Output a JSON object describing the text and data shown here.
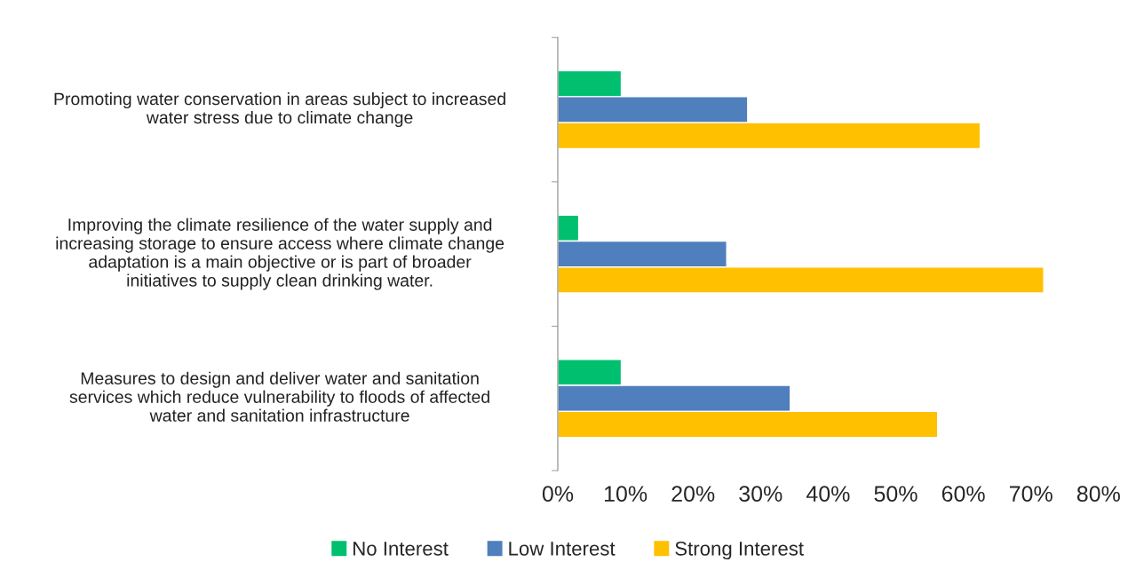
{
  "chart_data": {
    "type": "bar",
    "orientation": "horizontal",
    "categories": [
      "Promoting water conservation in areas subject to increased\nwater stress due to climate change",
      "Improving the climate resilience of the water supply and\nincreasing storage to ensure access where climate change\nadaptation is a main objective or is part of broader\ninitiatives to supply clean drinking water.",
      "Measures to design and deliver water and sanitation\nservices which reduce vulnerability to floods of affected\nwater and sanitation infrastructure"
    ],
    "series": [
      {
        "name": "No Interest",
        "color": "#00c06f",
        "values": [
          9.4,
          3.1,
          9.4
        ]
      },
      {
        "name": "Low Interest",
        "color": "#4f7fbc",
        "values": [
          28.1,
          25.0,
          34.4
        ]
      },
      {
        "name": "Strong Interest",
        "color": "#ffc000",
        "values": [
          62.5,
          71.9,
          56.2
        ]
      }
    ],
    "xlim": [
      0,
      80
    ],
    "xticks": [
      {
        "value": 0,
        "label": "0%"
      },
      {
        "value": 10,
        "label": "10%"
      },
      {
        "value": 20,
        "label": "20%"
      },
      {
        "value": 30,
        "label": "30%"
      },
      {
        "value": 40,
        "label": "40%"
      },
      {
        "value": 50,
        "label": "50%"
      },
      {
        "value": 60,
        "label": "60%"
      },
      {
        "value": 70,
        "label": "70%"
      },
      {
        "value": 80,
        "label": "80%"
      }
    ],
    "grid": false,
    "legend": "bottom"
  }
}
